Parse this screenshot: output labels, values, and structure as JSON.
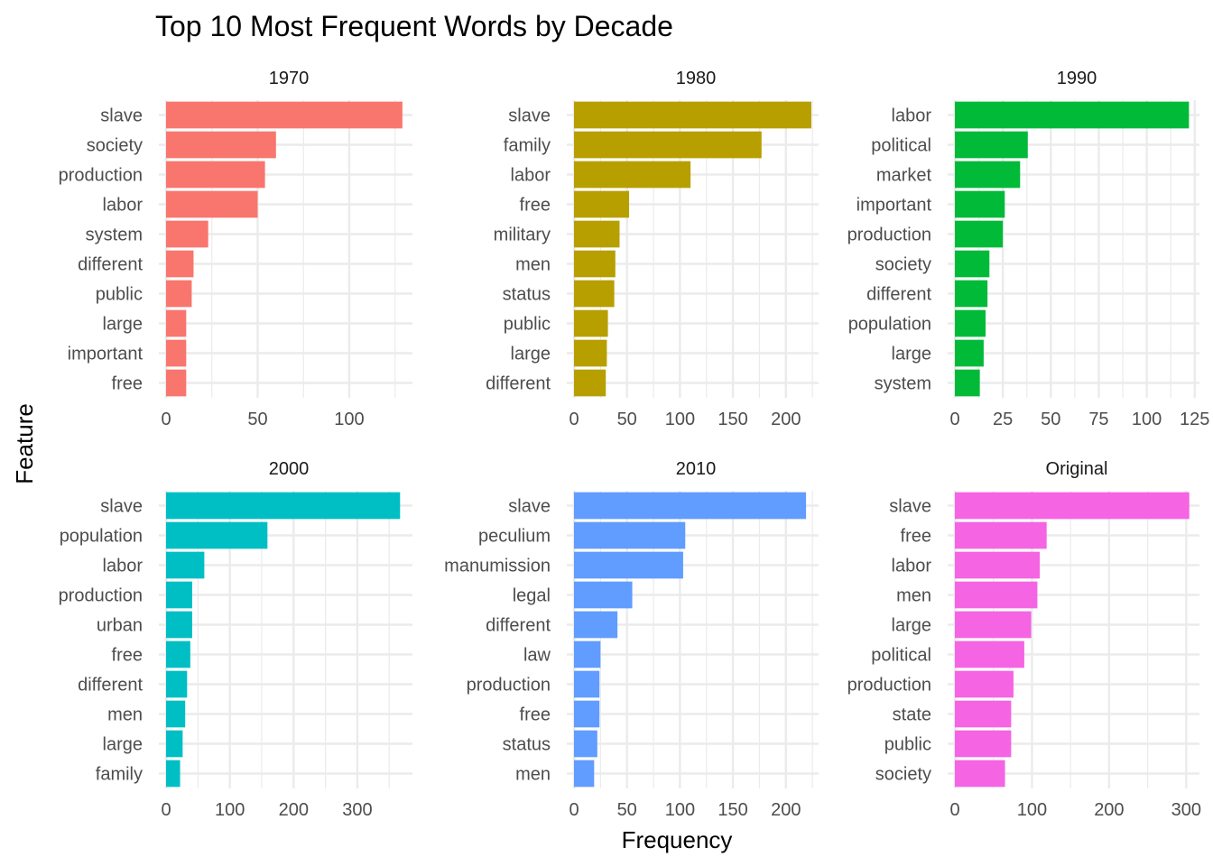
{
  "chart_data": {
    "type": "bar",
    "orientation": "horizontal",
    "title": "Top 10 Most Frequent Words by Decade",
    "xlabel": "Frequency",
    "ylabel": "Feature",
    "grid": true,
    "legend": "none",
    "panels": [
      {
        "name": "1970",
        "color": "#F8766D",
        "xlim": [
          0,
          134
        ],
        "xticks": [
          0,
          50,
          100
        ],
        "categories": [
          "slave",
          "society",
          "production",
          "labor",
          "system",
          "different",
          "public",
          "large",
          "important",
          "free"
        ],
        "values": [
          129,
          60,
          54,
          50,
          23,
          15,
          14,
          11,
          11,
          11
        ]
      },
      {
        "name": "1980",
        "color": "#B79F00",
        "xlim": [
          0,
          230
        ],
        "xticks": [
          0,
          50,
          100,
          150,
          200
        ],
        "categories": [
          "slave",
          "family",
          "labor",
          "free",
          "military",
          "men",
          "status",
          "public",
          "large",
          "different"
        ],
        "values": [
          224,
          177,
          110,
          52,
          43,
          39,
          38,
          32,
          31,
          30
        ]
      },
      {
        "name": "1990",
        "color": "#00BA38",
        "xlim": [
          0,
          127
        ],
        "xticks": [
          0,
          25,
          50,
          75,
          100,
          125
        ],
        "categories": [
          "labor",
          "political",
          "market",
          "important",
          "production",
          "society",
          "different",
          "population",
          "large",
          "system"
        ],
        "values": [
          122,
          38,
          34,
          26,
          25,
          18,
          17,
          16,
          15,
          13
        ]
      },
      {
        "name": "2000",
        "color": "#00BFC4",
        "xlim": [
          0,
          385
        ],
        "xticks": [
          0,
          100,
          200,
          300
        ],
        "categories": [
          "slave",
          "population",
          "labor",
          "production",
          "urban",
          "free",
          "different",
          "men",
          "large",
          "family"
        ],
        "values": [
          367,
          159,
          60,
          41,
          41,
          38,
          33,
          30,
          26,
          22
        ]
      },
      {
        "name": "2010",
        "color": "#619CFF",
        "xlim": [
          0,
          230
        ],
        "xticks": [
          0,
          50,
          100,
          150,
          200
        ],
        "categories": [
          "slave",
          "peculium",
          "manumission",
          "legal",
          "different",
          "law",
          "production",
          "free",
          "status",
          "men"
        ],
        "values": [
          219,
          105,
          103,
          55,
          41,
          25,
          24,
          24,
          22,
          19
        ]
      },
      {
        "name": "Original",
        "color": "#F564E3",
        "xlim": [
          0,
          316
        ],
        "xticks": [
          0,
          100,
          200,
          300
        ],
        "categories": [
          "slave",
          "free",
          "labor",
          "men",
          "large",
          "political",
          "production",
          "state",
          "public",
          "society"
        ],
        "values": [
          304,
          119,
          110,
          107,
          99,
          90,
          76,
          73,
          73,
          65
        ]
      }
    ]
  }
}
